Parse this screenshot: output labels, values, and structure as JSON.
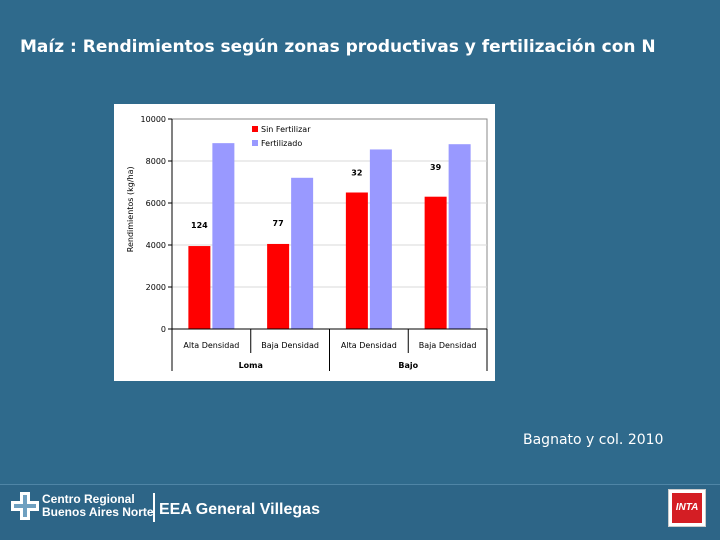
{
  "slide": {
    "title": "Maíz : Rendimientos según zonas productivas y fertilización con N",
    "citation": "Bagnato y col. 2010",
    "background_color": "#2f6a8c"
  },
  "footer": {
    "org_line1": "Centro Regional",
    "org_line2": "Buenos Aires Norte",
    "station": "EEA General Villegas",
    "logo_text": "INTA"
  },
  "chart_data": {
    "type": "bar",
    "title": "",
    "xlabel": "",
    "ylabel": "Rendimientos (kg/ha)",
    "ylim": [
      0,
      10000
    ],
    "yticks": [
      "0",
      "2000",
      "4000",
      "6000",
      "8000",
      "10000"
    ],
    "categories": [
      "Alta Densidad",
      "Baja Densidad",
      "Alta Densidad",
      "Baja Densidad"
    ],
    "groups": [
      {
        "label": "Loma",
        "span": [
          0,
          1
        ]
      },
      {
        "label": "Bajo",
        "span": [
          2,
          3
        ]
      }
    ],
    "series": [
      {
        "name": "Sin Fertilizar",
        "color": "#ff0000",
        "values": [
          3950,
          4050,
          6500,
          6300
        ]
      },
      {
        "name": "Fertilizado",
        "color": "#9999ff",
        "values": [
          8850,
          7200,
          8550,
          8800
        ]
      }
    ],
    "annotations": [
      "124",
      "77",
      "32",
      "39"
    ],
    "grid": true,
    "legend": "top-left"
  }
}
